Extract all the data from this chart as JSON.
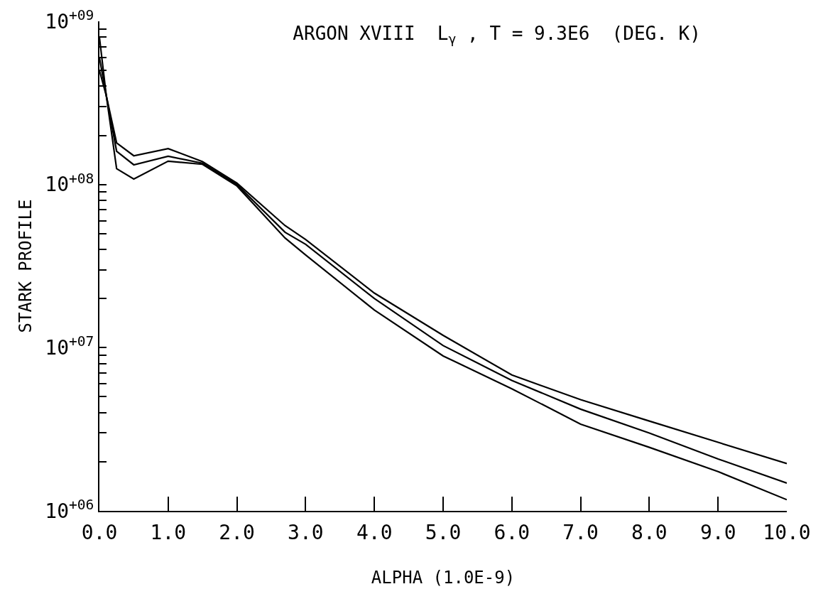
{
  "chart_data": {
    "type": "line",
    "title": "ARGON XVIII  L$_{γ}$ , T = 9.3E6  (DEG. K)",
    "xlabel": "ALPHA (1.0E-9)",
    "ylabel": "STARK PROFILE",
    "log": "y",
    "grid": false,
    "marker": "none",
    "line_style": "solid",
    "xlim": [
      0,
      10
    ],
    "ylim": [
      1000000,
      1000000000
    ],
    "xticks": [
      {
        "value": 0,
        "label": "0.0"
      },
      {
        "value": 1,
        "label": "1.0"
      },
      {
        "value": 2,
        "label": "2.0"
      },
      {
        "value": 3,
        "label": "3.0"
      },
      {
        "value": 4,
        "label": "4.0"
      },
      {
        "value": 5,
        "label": "5.0"
      },
      {
        "value": 6,
        "label": "6.0"
      },
      {
        "value": 7,
        "label": "7.0"
      },
      {
        "value": 8,
        "label": "8.0"
      },
      {
        "value": 9,
        "label": "9.0"
      },
      {
        "value": 10,
        "label": "10.0"
      }
    ],
    "yticks": [
      {
        "value": 1000000,
        "label": "10$^{+06}$"
      },
      {
        "value": 2000000,
        "label": null
      },
      {
        "value": 3000000,
        "label": null
      },
      {
        "value": 4000000,
        "label": null
      },
      {
        "value": 5000000,
        "label": null
      },
      {
        "value": 6000000,
        "label": null
      },
      {
        "value": 7000000,
        "label": null
      },
      {
        "value": 8000000,
        "label": null
      },
      {
        "value": 9000000,
        "label": null
      },
      {
        "value": 10000000,
        "label": "10$^{+07}$"
      },
      {
        "value": 20000000,
        "label": null
      },
      {
        "value": 30000000,
        "label": null
      },
      {
        "value": 40000000,
        "label": null
      },
      {
        "value": 50000000,
        "label": null
      },
      {
        "value": 60000000,
        "label": null
      },
      {
        "value": 70000000,
        "label": null
      },
      {
        "value": 80000000,
        "label": null
      },
      {
        "value": 90000000,
        "label": null
      },
      {
        "value": 100000000,
        "label": "10$^{+08}$"
      },
      {
        "value": 200000000,
        "label": null
      },
      {
        "value": 300000000,
        "label": null
      },
      {
        "value": 400000000,
        "label": null
      },
      {
        "value": 500000000,
        "label": null
      },
      {
        "value": 600000000,
        "label": null
      },
      {
        "value": 700000000,
        "label": null
      },
      {
        "value": 800000000,
        "label": null
      },
      {
        "value": 900000000,
        "label": null
      },
      {
        "value": 1000000000,
        "label": "10$^{+09}$"
      }
    ],
    "x": [
      0,
      0.1,
      0.25,
      0.5,
      1,
      1.5,
      2,
      2.7,
      3,
      4,
      5,
      6,
      7,
      8,
      9,
      10
    ],
    "series": [
      {
        "color": "#000000",
        "values": [
          800000000,
          350000000,
          180000000,
          150000000,
          166000000,
          138000000,
          102000000,
          56000000,
          46000000,
          21600000,
          11900000,
          6800000,
          4800000,
          3550000,
          2630000,
          1950000
        ]
      },
      {
        "color": "#000000",
        "values": [
          600000000,
          350000000,
          160000000,
          132000000,
          149000000,
          135000000,
          100000000,
          51000000,
          43000000,
          20000000,
          10300000,
          6300000,
          4200000,
          3000000,
          2080000,
          1480000
        ]
      },
      {
        "color": "#000000",
        "values": [
          500000000,
          350000000,
          125000000,
          108000000,
          139000000,
          133000000,
          98000000,
          47000000,
          37000000,
          17000000,
          8900000,
          5600000,
          3400000,
          2450000,
          1740000,
          1170000
        ]
      }
    ]
  }
}
